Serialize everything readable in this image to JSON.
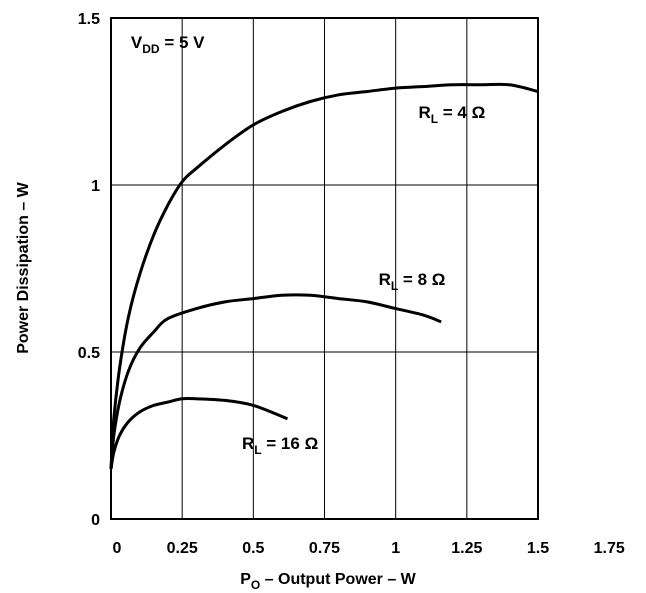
{
  "chart_data": {
    "type": "line",
    "title": "",
    "xlabel": {
      "main": "P",
      "sub": "O",
      "rest": " – Output Power – W"
    },
    "ylabel": "Power Dissipation – W",
    "xlim": [
      0,
      1.75
    ],
    "ylim": [
      0,
      1.5
    ],
    "x_ticks": [
      0,
      0.25,
      0.5,
      0.75,
      1,
      1.25,
      1.5,
      1.75
    ],
    "x_tick_labels": [
      "0",
      "0.25",
      "0.5",
      "0.75",
      "1",
      "1.25",
      "1.5",
      "1.75"
    ],
    "y_ticks": [
      0,
      0.5,
      1,
      1.5
    ],
    "y_tick_labels": [
      "0",
      "0.5",
      "1",
      "1.5"
    ],
    "grid": true,
    "condition_annotation": {
      "main": "V",
      "sub": "DD",
      "rest": " = 5 V",
      "anchor": {
        "x": 0.07,
        "y": 1.41
      }
    },
    "series": [
      {
        "name": "R_L = 4 Ω",
        "label": {
          "main": "R",
          "sub": "L",
          "rest": " = 4 Ω"
        },
        "label_anchor": {
          "x": 1.08,
          "y": 1.2
        },
        "x": [
          0,
          0.01,
          0.03,
          0.06,
          0.1,
          0.15,
          0.2,
          0.25,
          0.3,
          0.4,
          0.5,
          0.6,
          0.7,
          0.8,
          0.9,
          1.0,
          1.1,
          1.2,
          1.3,
          1.4,
          1.5
        ],
        "y": [
          0.15,
          0.3,
          0.45,
          0.6,
          0.73,
          0.85,
          0.94,
          1.01,
          1.05,
          1.12,
          1.18,
          1.22,
          1.25,
          1.27,
          1.28,
          1.29,
          1.295,
          1.3,
          1.3,
          1.3,
          1.28
        ]
      },
      {
        "name": "R_L = 8 Ω",
        "label": {
          "main": "R",
          "sub": "L",
          "rest": " = 8 Ω"
        },
        "label_anchor": {
          "x": 0.94,
          "y": 0.7
        },
        "x": [
          0,
          0.01,
          0.03,
          0.06,
          0.1,
          0.15,
          0.2,
          0.3,
          0.4,
          0.5,
          0.6,
          0.7,
          0.8,
          0.9,
          1.0,
          1.1,
          1.16
        ],
        "y": [
          0.15,
          0.25,
          0.35,
          0.44,
          0.51,
          0.56,
          0.6,
          0.63,
          0.65,
          0.66,
          0.67,
          0.67,
          0.66,
          0.65,
          0.63,
          0.61,
          0.59
        ]
      },
      {
        "name": "R_L = 16 Ω",
        "label": {
          "main": "R",
          "sub": "L",
          "rest": " = 16 Ω"
        },
        "label_anchor": {
          "x": 0.46,
          "y": 0.21
        },
        "x": [
          0,
          0.01,
          0.03,
          0.06,
          0.1,
          0.15,
          0.2,
          0.25,
          0.3,
          0.4,
          0.5,
          0.62
        ],
        "y": [
          0.15,
          0.2,
          0.25,
          0.29,
          0.32,
          0.34,
          0.35,
          0.36,
          0.36,
          0.355,
          0.34,
          0.3
        ]
      }
    ]
  }
}
